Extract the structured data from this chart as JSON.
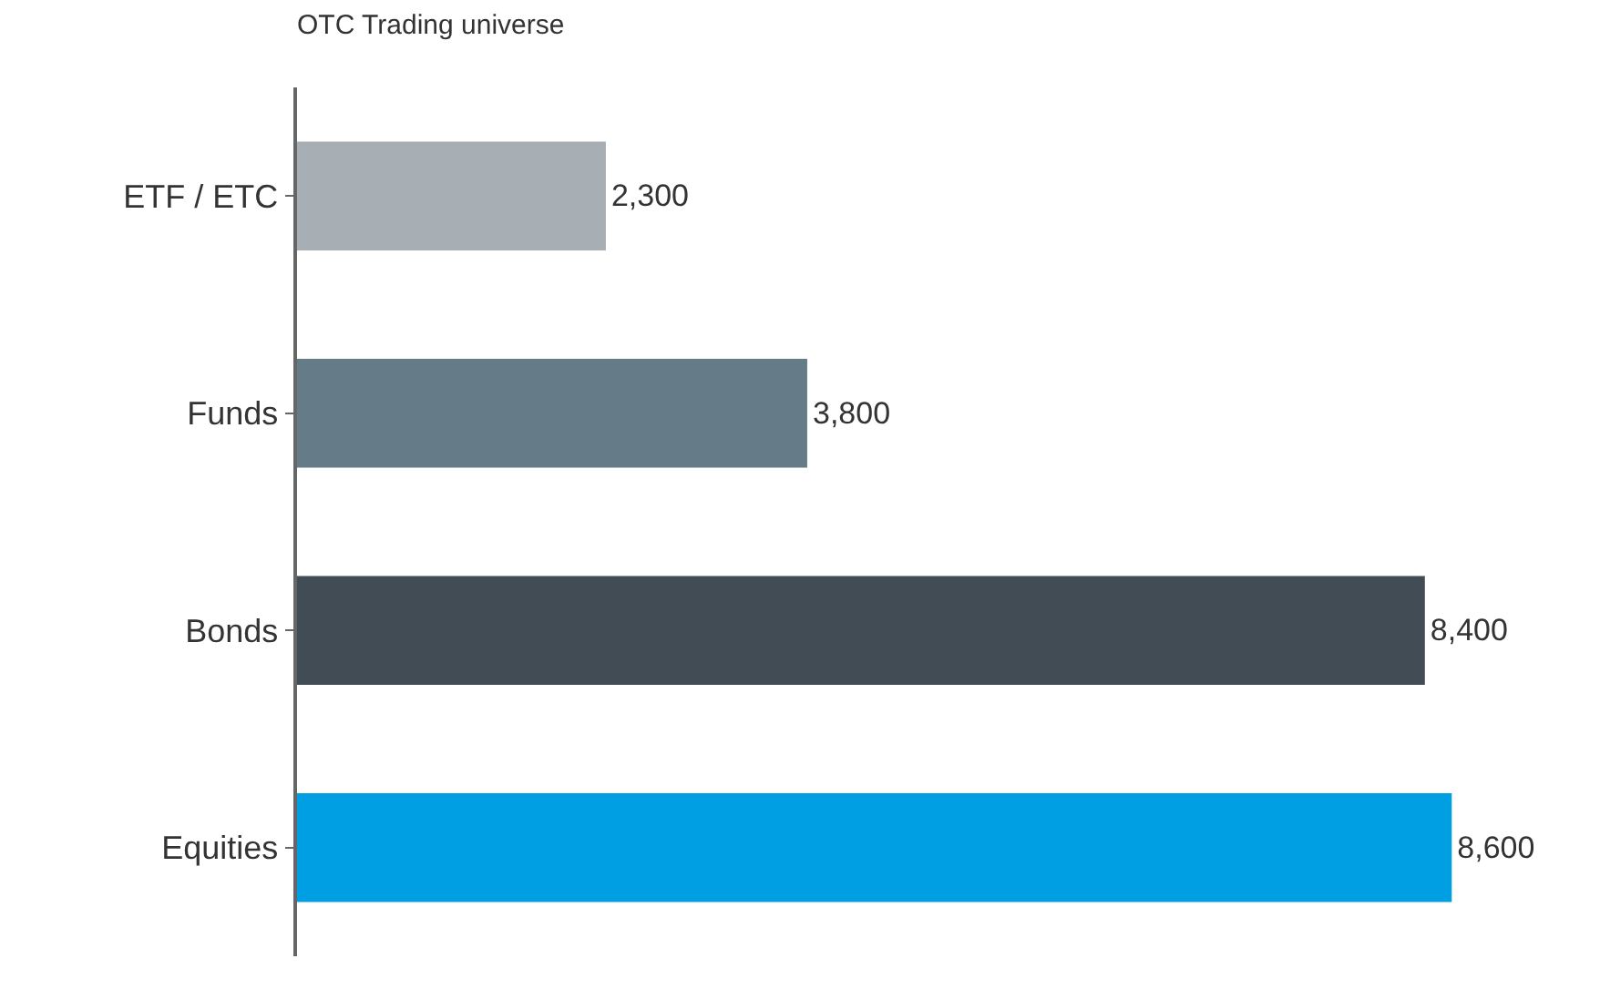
{
  "chart_data": {
    "type": "bar",
    "orientation": "horizontal",
    "title": "OTC Trading universe",
    "categories": [
      "ETF / ETC",
      "Funds",
      "Bonds",
      "Equities"
    ],
    "values": [
      2300,
      3800,
      8400,
      8600
    ],
    "colors": [
      "#a7aeb4",
      "#667b88",
      "#414c54",
      "#009fe3"
    ],
    "value_labels": [
      "2,300",
      "3,800",
      "8,400",
      "8,600"
    ],
    "tick_labels": "y"
  }
}
